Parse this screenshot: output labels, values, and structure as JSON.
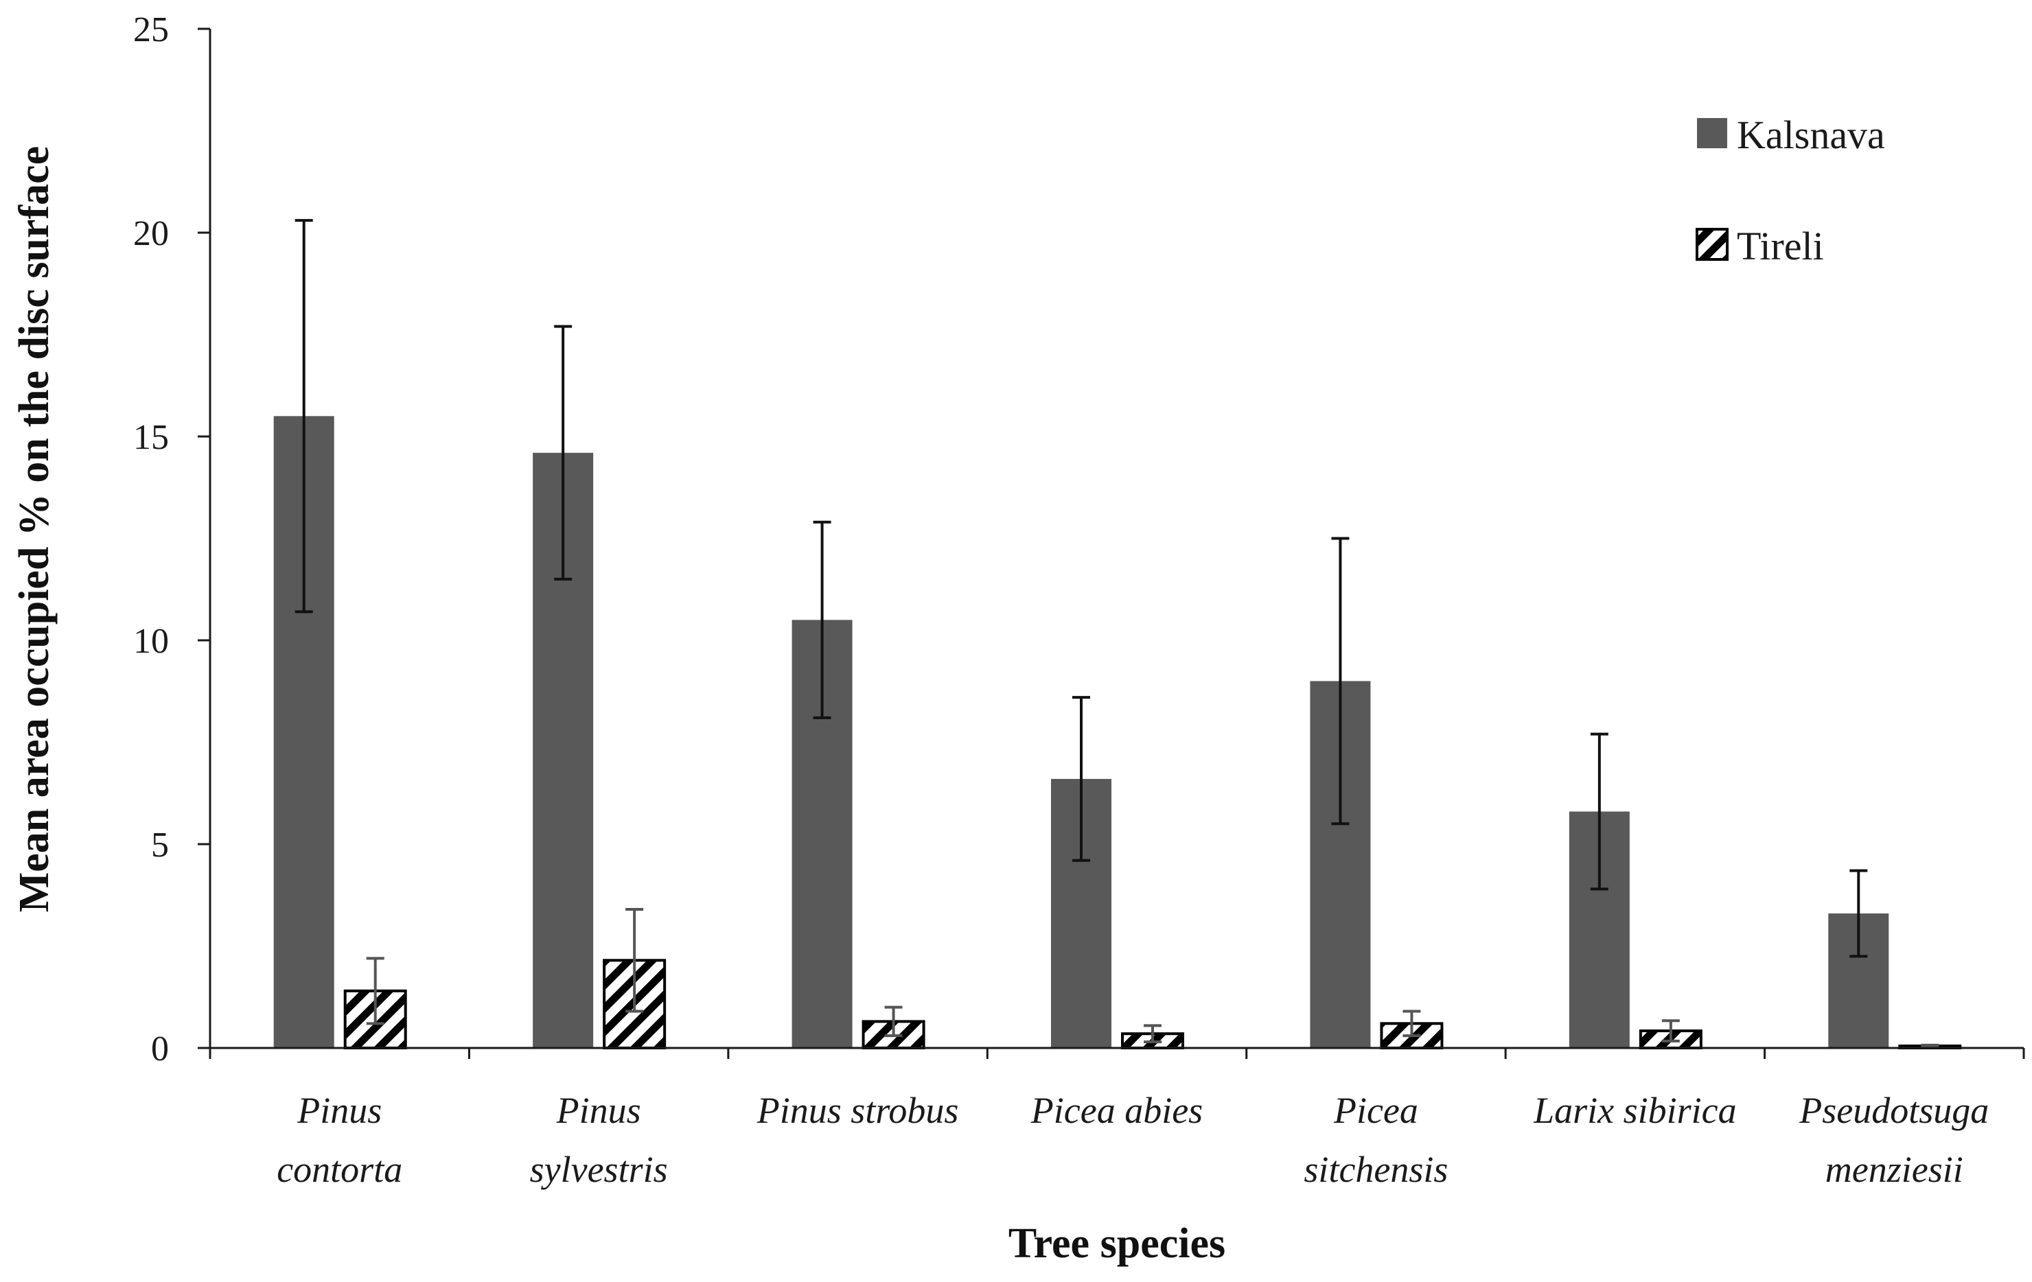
{
  "chart_data": {
    "type": "bar",
    "title": "",
    "xlabel": "Tree species",
    "ylabel": "Mean area occupied % on the disc surface",
    "ylim": [
      0,
      25
    ],
    "yticks": [
      "0",
      "5",
      "10",
      "15",
      "20",
      "25"
    ],
    "grid": false,
    "legend_position": "top-right",
    "categories": [
      [
        "Pinus",
        "contorta"
      ],
      [
        "Pinus",
        "sylvestris"
      ],
      [
        "Pinus strobus"
      ],
      [
        "Picea abies"
      ],
      [
        "Picea",
        "sitchensis"
      ],
      [
        "Larix sibirica"
      ],
      [
        "Pseudotsuga",
        "menziesii"
      ]
    ],
    "series": [
      {
        "name": "Kalsnava",
        "color": "#595959",
        "pattern": "solid",
        "values": [
          15.5,
          14.6,
          10.5,
          6.6,
          9.0,
          5.8,
          3.3
        ],
        "error": [
          4.8,
          3.1,
          2.4,
          2.0,
          3.5,
          1.9,
          1.05
        ]
      },
      {
        "name": "Tireli",
        "color": "#000000",
        "pattern": "diagonal-hatch",
        "values": [
          1.4,
          2.15,
          0.65,
          0.35,
          0.6,
          0.42,
          0.05
        ],
        "error": [
          0.8,
          1.25,
          0.35,
          0.2,
          0.3,
          0.25,
          0.02
        ]
      }
    ]
  }
}
